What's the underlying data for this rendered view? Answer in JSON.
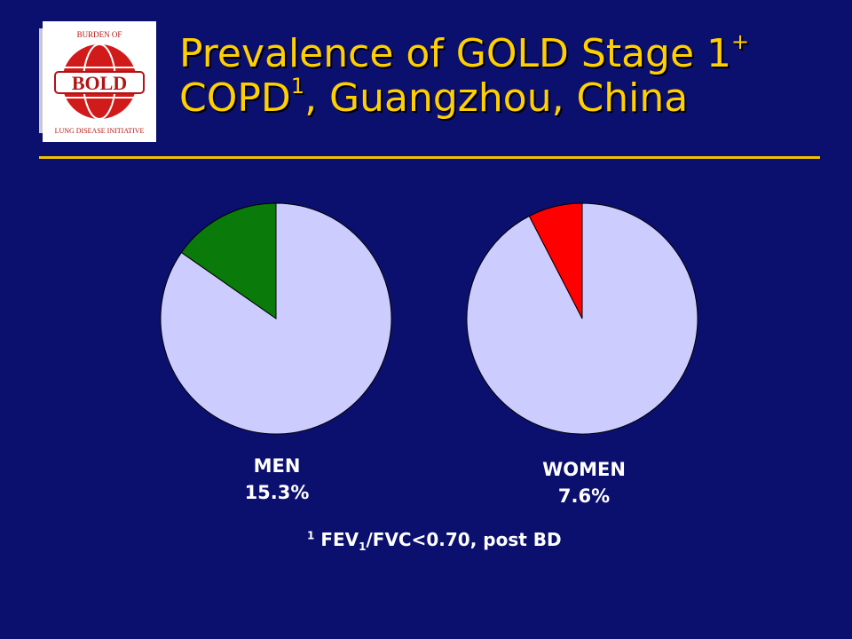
{
  "logo": {
    "center_text": "BOLD",
    "ring_text_top": "BURDEN OF",
    "ring_text_bottom": "LUNG DISEASE INITIATIVE",
    "colors": {
      "globe": "#d11a1a",
      "banner": "#ffffff",
      "text": "#b01515"
    }
  },
  "title": {
    "line1_text": "Prevalence of GOLD Stage 1",
    "line1_sup": "+",
    "line2_prefix": "COPD",
    "line2_sup": "1",
    "line2_suffix": ",  Guangzhou, China"
  },
  "footnote": {
    "marker": "1",
    "text_a": " FEV",
    "sub": "1",
    "text_b": "/FVC<0.70, post BD"
  },
  "chart_data": [
    {
      "type": "pie",
      "label": "MEN",
      "value_label": "15.3%",
      "slices": [
        {
          "value": 15.3,
          "color": "#0a7a0a"
        },
        {
          "value": 84.7,
          "color": "#ccccff"
        }
      ]
    },
    {
      "type": "pie",
      "label": "WOMEN",
      "value_label": "7.6%",
      "slices": [
        {
          "value": 7.6,
          "color": "#ff0000"
        },
        {
          "value": 92.4,
          "color": "#ccccff"
        }
      ]
    }
  ]
}
